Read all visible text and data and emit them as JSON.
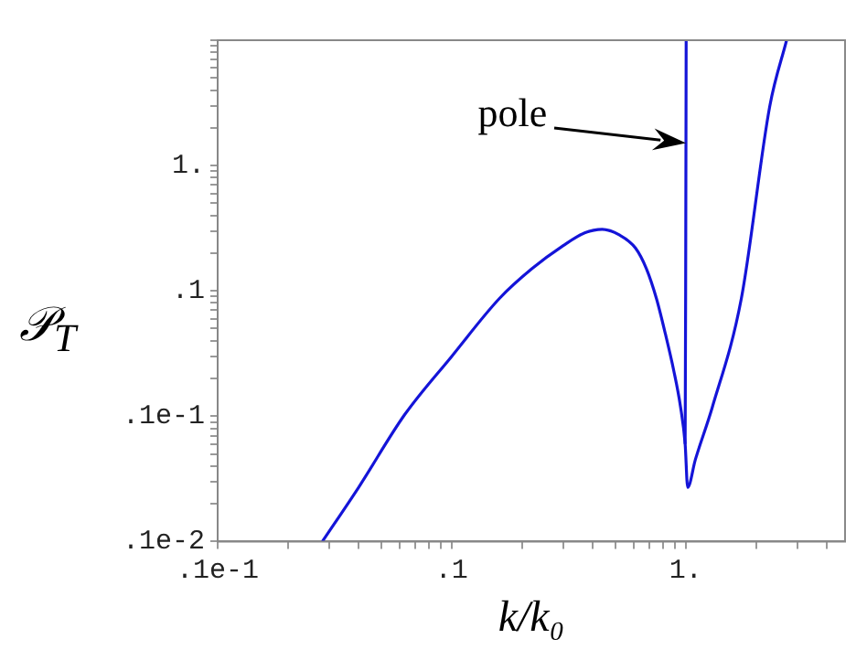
{
  "chart_data": {
    "type": "line",
    "xlabel": "k/k₀",
    "ylabel": "𝒫$_{T}$",
    "log": "xy",
    "marker": "none",
    "xlim": [
      0.01,
      4.8
    ],
    "ylim": [
      0.001,
      10
    ],
    "xticks": [
      {
        "value": 0.01,
        "label": ".1e-1"
      },
      {
        "value": 0.02,
        "label": null
      },
      {
        "value": 0.03,
        "label": null
      },
      {
        "value": 0.04,
        "label": null
      },
      {
        "value": 0.05,
        "label": null
      },
      {
        "value": 0.06,
        "label": null
      },
      {
        "value": 0.07,
        "label": null
      },
      {
        "value": 0.08,
        "label": null
      },
      {
        "value": 0.09,
        "label": null
      },
      {
        "value": 0.1,
        "label": ".1"
      },
      {
        "value": 0.2,
        "label": null
      },
      {
        "value": 0.3,
        "label": null
      },
      {
        "value": 0.4,
        "label": null
      },
      {
        "value": 0.5,
        "label": null
      },
      {
        "value": 0.6,
        "label": null
      },
      {
        "value": 0.7,
        "label": null
      },
      {
        "value": 0.8,
        "label": null
      },
      {
        "value": 0.9,
        "label": null
      },
      {
        "value": 1,
        "label": "1."
      },
      {
        "value": 2,
        "label": null
      },
      {
        "value": 3,
        "label": null
      },
      {
        "value": 4,
        "label": null
      }
    ],
    "yticks": [
      {
        "value": 0.001,
        "label": ".1e-2"
      },
      {
        "value": 0.002,
        "label": null
      },
      {
        "value": 0.003,
        "label": null
      },
      {
        "value": 0.004,
        "label": null
      },
      {
        "value": 0.005,
        "label": null
      },
      {
        "value": 0.006,
        "label": null
      },
      {
        "value": 0.007,
        "label": null
      },
      {
        "value": 0.008,
        "label": null
      },
      {
        "value": 0.009,
        "label": null
      },
      {
        "value": 0.01,
        "label": ".1e-1"
      },
      {
        "value": 0.02,
        "label": null
      },
      {
        "value": 0.03,
        "label": null
      },
      {
        "value": 0.04,
        "label": null
      },
      {
        "value": 0.05,
        "label": null
      },
      {
        "value": 0.06,
        "label": null
      },
      {
        "value": 0.07,
        "label": null
      },
      {
        "value": 0.08,
        "label": null
      },
      {
        "value": 0.09,
        "label": null
      },
      {
        "value": 0.1,
        "label": ".1"
      },
      {
        "value": 0.2,
        "label": null
      },
      {
        "value": 0.3,
        "label": null
      },
      {
        "value": 0.4,
        "label": null
      },
      {
        "value": 0.5,
        "label": null
      },
      {
        "value": 0.6,
        "label": null
      },
      {
        "value": 0.7,
        "label": null
      },
      {
        "value": 0.8,
        "label": null
      },
      {
        "value": 0.9,
        "label": null
      },
      {
        "value": 1,
        "label": "1."
      },
      {
        "value": 2,
        "label": null
      },
      {
        "value": 3,
        "label": null
      },
      {
        "value": 4,
        "label": null
      },
      {
        "value": 5,
        "label": null
      },
      {
        "value": 6,
        "label": null
      },
      {
        "value": 7,
        "label": null
      },
      {
        "value": 8,
        "label": null
      },
      {
        "value": 9,
        "label": null
      },
      {
        "value": 10,
        "label": null
      }
    ],
    "series": [
      {
        "color": "#1414d8",
        "x": [
          0.028,
          0.04,
          0.063,
          0.1,
          0.16,
          0.22,
          0.3,
          0.37,
          0.44,
          0.52,
          0.61,
          0.68,
          0.75,
          0.82,
          0.89,
          0.95,
          0.995,
          1.02,
          1.1,
          1.3,
          1.73,
          2.29,
          2.7
        ],
        "values": [
          0.001,
          0.0027,
          0.0103,
          0.03,
          0.087,
          0.15,
          0.23,
          0.29,
          0.31,
          0.28,
          0.22,
          0.15,
          0.087,
          0.045,
          0.023,
          0.012,
          0.006,
          0.0027,
          0.0045,
          0.0118,
          0.087,
          3,
          10
        ]
      },
      {
        "color": "#1414d8",
        "x": [
          0.995,
          1.0,
          1.005
        ],
        "values": [
          0.006,
          0.1,
          10
        ]
      }
    ],
    "annotations": [
      "pole"
    ]
  }
}
